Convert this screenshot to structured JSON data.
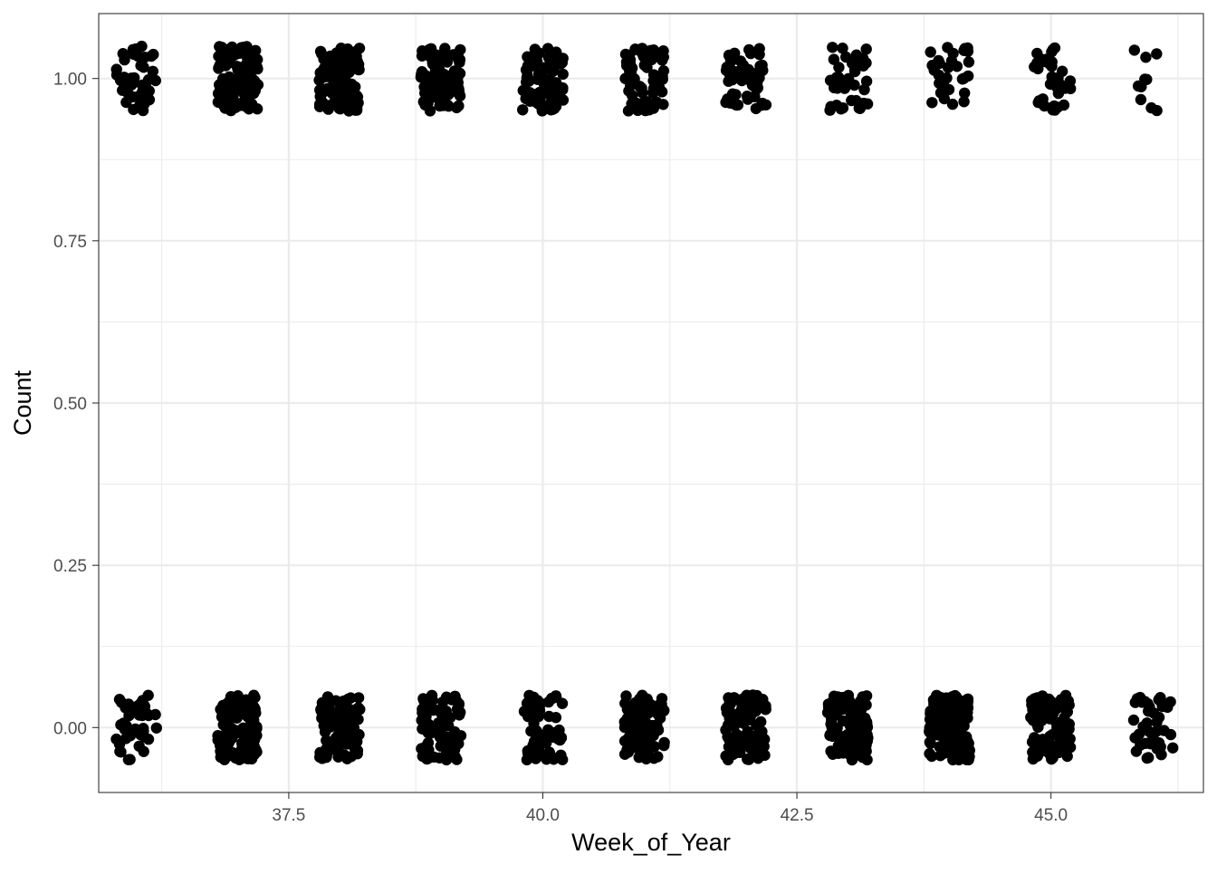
{
  "chart_data": {
    "type": "scatter",
    "title": "",
    "xlabel": "Week_of_Year",
    "ylabel": "Count",
    "xlim": [
      35.63,
      46.5
    ],
    "ylim": [
      -0.1,
      1.1
    ],
    "x_ticks": [
      37.5,
      40.0,
      42.5,
      45.0
    ],
    "x_tick_labels": [
      "37.5",
      "40.0",
      "42.5",
      "45.0"
    ],
    "x_minor_ticks": [
      36.25,
      38.75,
      41.25,
      43.75,
      46.25
    ],
    "y_ticks": [
      0.0,
      0.25,
      0.5,
      0.75,
      1.0
    ],
    "y_tick_labels": [
      "0.00",
      "0.25",
      "0.50",
      "0.75",
      "1.00"
    ],
    "y_minor_ticks": [
      0.125,
      0.375,
      0.625,
      0.875
    ],
    "grid": true,
    "theme": "bw",
    "point_color": "#000000",
    "jitter": {
      "x": 0.2,
      "y": 0.05
    },
    "weeks": [
      36,
      37,
      38,
      39,
      40,
      41,
      42,
      43,
      44,
      45,
      46
    ],
    "counts_at_1": [
      45,
      110,
      100,
      90,
      85,
      60,
      55,
      40,
      30,
      35,
      10
    ],
    "counts_at_0": [
      40,
      100,
      90,
      80,
      70,
      90,
      100,
      120,
      150,
      100,
      40
    ]
  }
}
